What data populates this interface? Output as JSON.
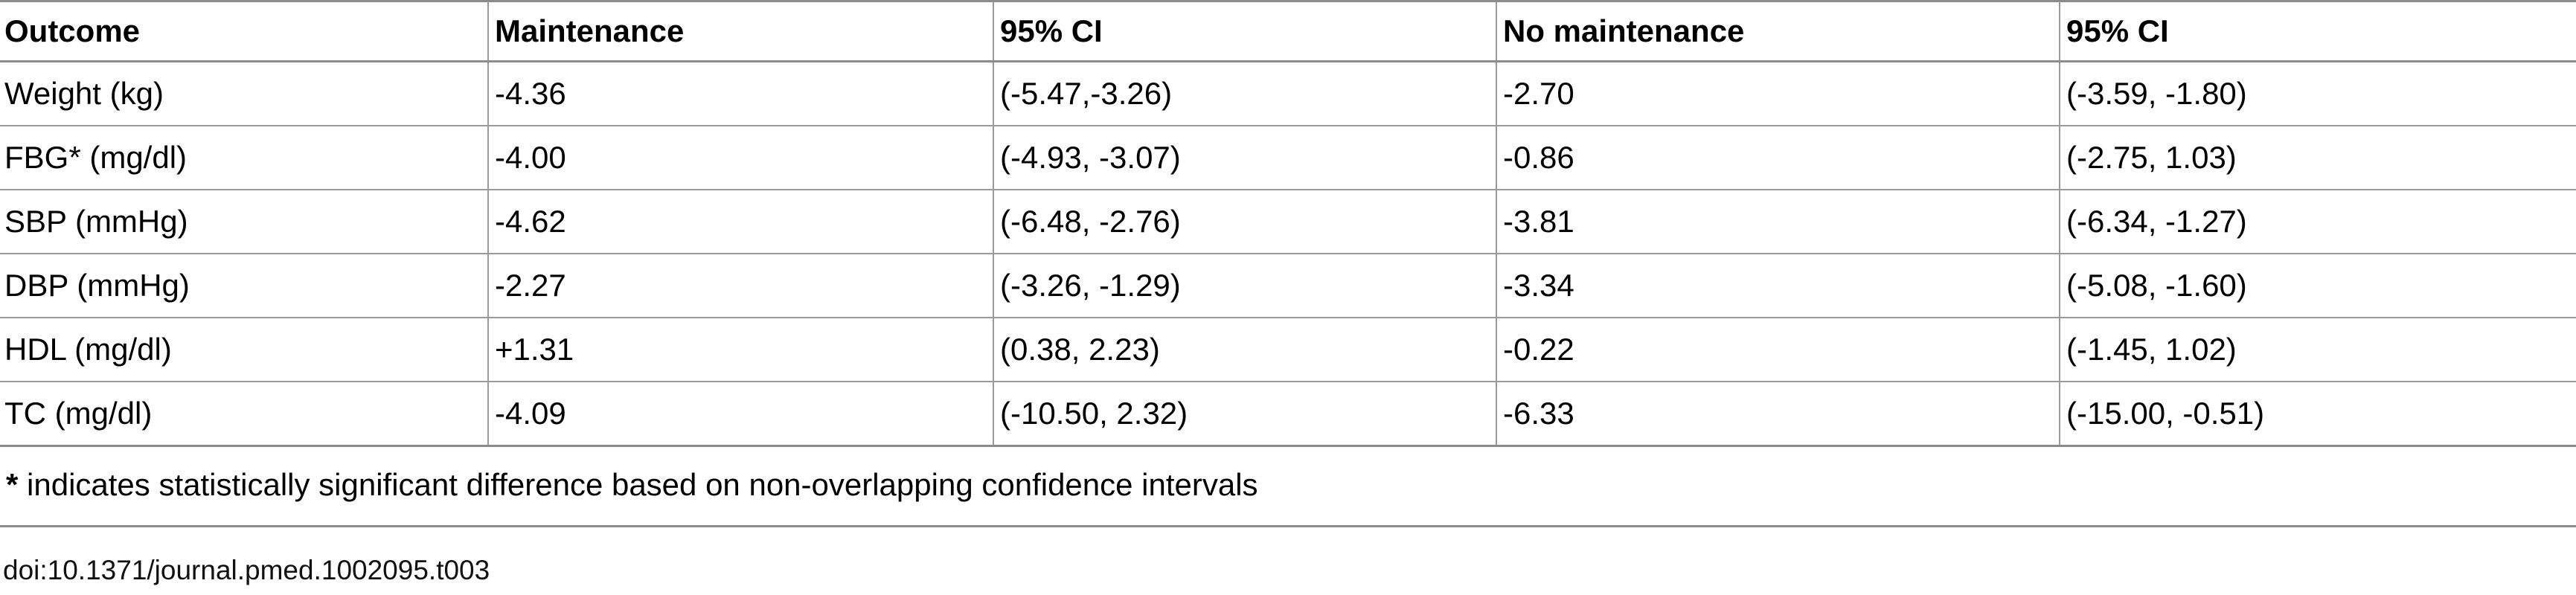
{
  "table": {
    "headers": [
      "Outcome",
      "Maintenance",
      "95% CI",
      "No maintenance",
      "95% CI"
    ],
    "rows": [
      [
        "Weight (kg)",
        "-4.36",
        "(-5.47,-3.26)",
        "-2.70",
        "(-3.59, -1.80)"
      ],
      [
        "FBG* (mg/dl)",
        "-4.00",
        "(-4.93, -3.07)",
        "-0.86",
        "(-2.75, 1.03)"
      ],
      [
        "SBP (mmHg)",
        "-4.62",
        "(-6.48, -2.76)",
        "-3.81",
        "(-6.34, -1.27)"
      ],
      [
        "DBP (mmHg)",
        "-2.27",
        "(-3.26, -1.29)",
        "-3.34",
        "(-5.08, -1.60)"
      ],
      [
        "HDL (mg/dl)",
        "+1.31",
        "(0.38, 2.23)",
        "-0.22",
        "(-1.45, 1.02)"
      ],
      [
        "TC (mg/dl)",
        "-4.09",
        "(-10.50, 2.32)",
        "-6.33",
        "(-15.00, -0.51)"
      ]
    ]
  },
  "footnote": {
    "marker": "*",
    "text": " indicates statistically significant difference based on non-overlapping confidence intervals"
  },
  "doi": "doi:10.1371/journal.pmed.1002095.t003"
}
